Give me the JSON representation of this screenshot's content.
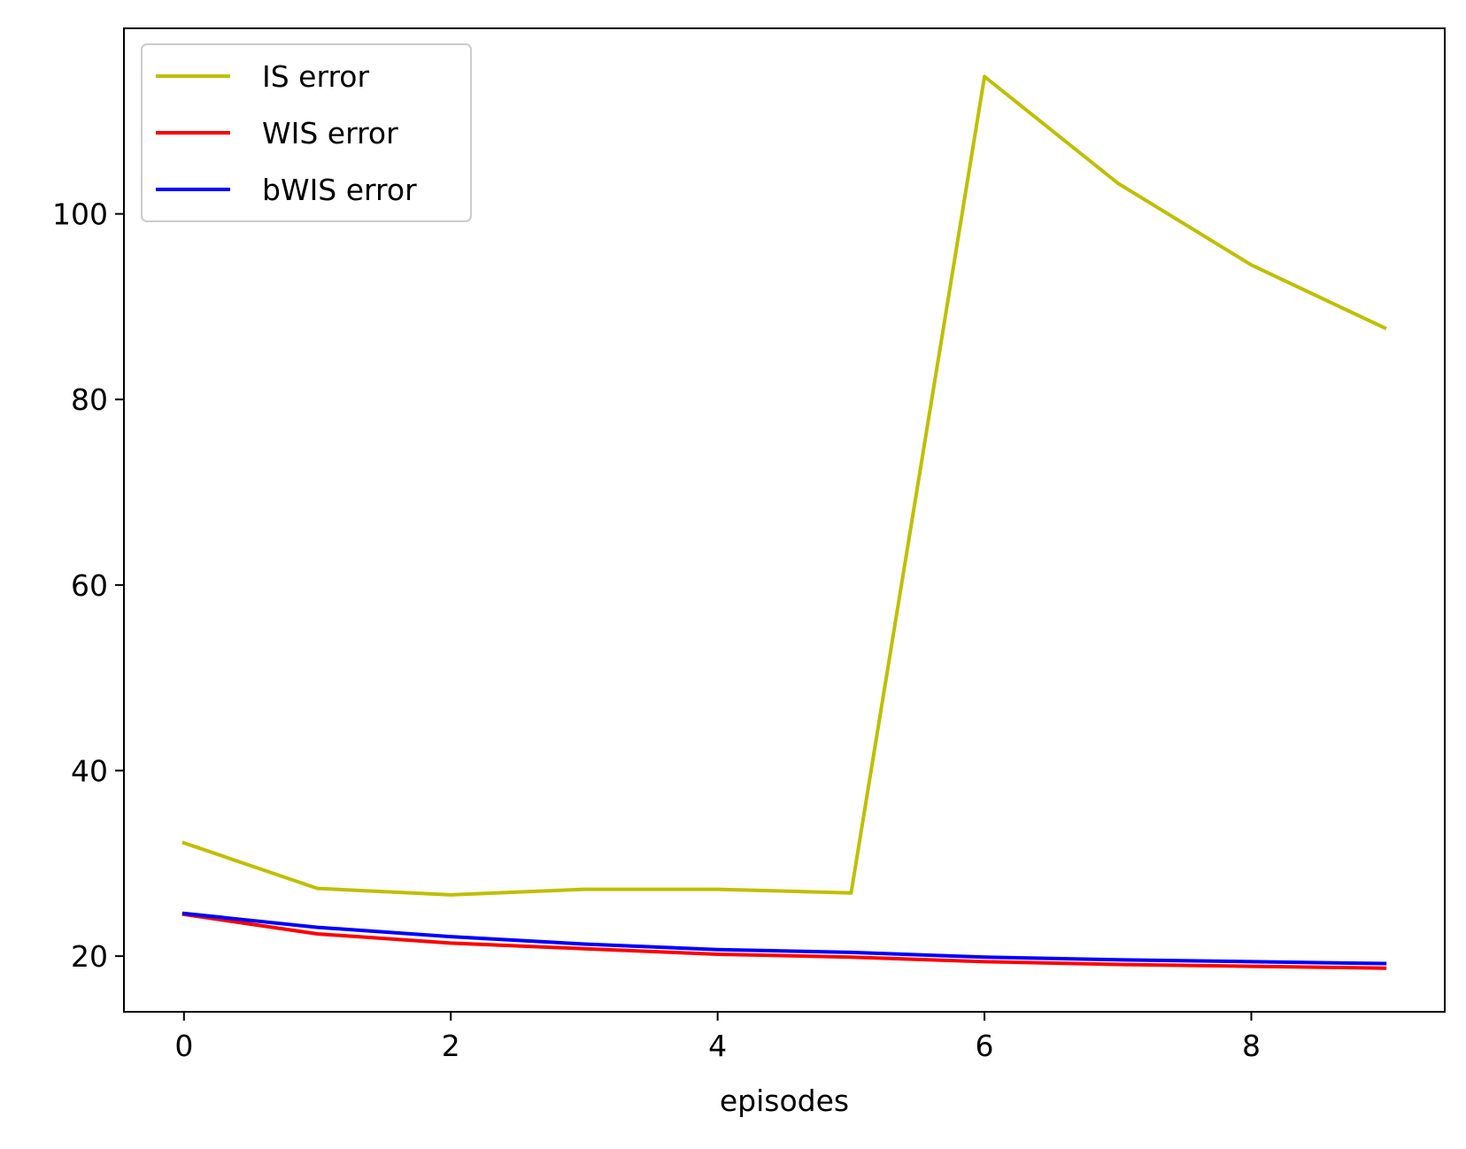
{
  "chart_data": {
    "type": "line",
    "title": "",
    "xlabel": "episodes",
    "ylabel": "",
    "x": [
      0,
      1,
      2,
      3,
      4,
      5,
      6,
      7,
      8,
      9
    ],
    "xlim": [
      -0.45,
      9.45
    ],
    "ylim": [
      14,
      120
    ],
    "xticks": [
      0,
      2,
      4,
      6,
      8
    ],
    "yticks": [
      20,
      40,
      60,
      80,
      100
    ],
    "grid": false,
    "legend_position": "top-left",
    "series": [
      {
        "name": "IS error",
        "color": "#bfbf00",
        "values": [
          32.2,
          27.3,
          26.6,
          27.2,
          27.2,
          26.8,
          114.8,
          103.3,
          94.5,
          87.7
        ]
      },
      {
        "name": "WIS error",
        "color": "#ff0000",
        "values": [
          24.5,
          22.4,
          21.4,
          20.8,
          20.2,
          19.9,
          19.4,
          19.1,
          18.9,
          18.7
        ]
      },
      {
        "name": "bWIS error",
        "color": "#0000ff",
        "values": [
          24.6,
          23.1,
          22.1,
          21.3,
          20.7,
          20.4,
          19.9,
          19.6,
          19.4,
          19.2
        ]
      }
    ]
  }
}
